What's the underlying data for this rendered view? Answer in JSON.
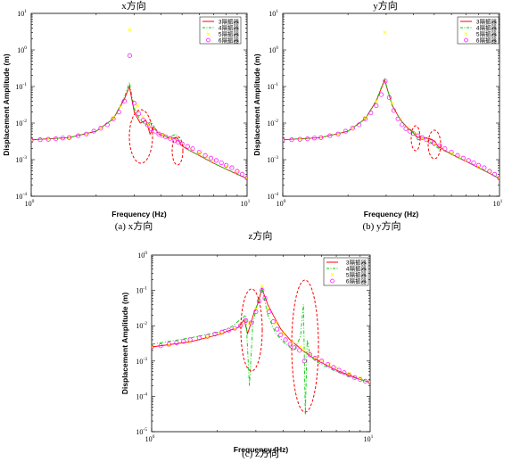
{
  "chart_data": [
    {
      "type": "line",
      "title": "x方向",
      "caption": "(a) x方向",
      "xlabel": "Frequency (Hz)",
      "ylabel": "Displacement Amplitude (m)",
      "xscale": "log",
      "yscale": "log",
      "xlim": [
        1,
        10
      ],
      "ylim": [
        0.0001,
        10
      ],
      "xticks": [
        {
          "label": "10",
          "exp": "0"
        },
        {
          "label": "10",
          "exp": "1"
        }
      ],
      "yticks": [
        {
          "label": "10",
          "exp": "-4"
        },
        {
          "label": "10",
          "exp": "-3"
        },
        {
          "label": "10",
          "exp": "-2"
        },
        {
          "label": "10",
          "exp": "-1"
        },
        {
          "label": "10",
          "exp": "0"
        },
        {
          "label": "10",
          "exp": "1"
        }
      ],
      "legend": {
        "position": "top-right",
        "entries": [
          "3隔振器",
          "4隔振器",
          "5隔振器",
          "6隔振器"
        ]
      },
      "series": [
        {
          "name": "3隔振器",
          "color": "#ff0000",
          "style": "solid",
          "marker": "none",
          "x": [
            1,
            1.5,
            2,
            2.4,
            2.7,
            2.85,
            3.0,
            3.2,
            3.4,
            3.55,
            3.7,
            3.9,
            4.1,
            4.4,
            4.7,
            4.9,
            5.1,
            5.5,
            6,
            7,
            8,
            9,
            10
          ],
          "y": [
            0.0035,
            0.004,
            0.006,
            0.013,
            0.045,
            0.1,
            0.02,
            0.01,
            0.012,
            0.005,
            0.008,
            0.005,
            0.0045,
            0.0038,
            0.004,
            0.0028,
            0.0022,
            0.0017,
            0.0013,
            0.0008,
            0.00055,
            0.0004,
            0.0003
          ]
        },
        {
          "name": "4隔振器",
          "color": "#00cc00",
          "style": "dashdot",
          "marker": "none",
          "x": [
            1,
            1.5,
            2,
            2.4,
            2.7,
            2.85,
            3.0,
            3.2,
            3.4,
            3.6,
            3.8,
            4.0,
            4.3,
            4.7,
            4.9,
            5.1,
            5.5,
            6,
            7,
            8,
            9,
            10
          ],
          "y": [
            0.0035,
            0.004,
            0.006,
            0.013,
            0.05,
            0.13,
            0.025,
            0.012,
            0.009,
            0.011,
            0.006,
            0.0048,
            0.004,
            0.005,
            0.0027,
            0.0022,
            0.0017,
            0.0013,
            0.0008,
            0.00055,
            0.0004,
            0.0003
          ]
        },
        {
          "name": "5隔振器",
          "color": "#ffff00",
          "style": "none",
          "marker": "x",
          "x": [
            1,
            1.2,
            1.5,
            1.8,
            2.1,
            2.4,
            2.6,
            2.86,
            3.1,
            3.3,
            3.5,
            3.7,
            3.9,
            4.1,
            4.4,
            4.7,
            5.0,
            5.5,
            6,
            6.5,
            7,
            8,
            9,
            10
          ],
          "y": [
            0.0035,
            0.0036,
            0.004,
            0.005,
            0.0075,
            0.014,
            0.028,
            3.5,
            0.03,
            0.015,
            0.009,
            0.007,
            0.0055,
            0.0047,
            0.004,
            0.0033,
            0.0027,
            0.002,
            0.0015,
            0.0012,
            0.00095,
            0.00065,
            0.00045,
            0.00032
          ]
        },
        {
          "name": "6隔振器",
          "color": "#ff00ff",
          "style": "none",
          "marker": "circle",
          "x": [
            1,
            1.1,
            1.2,
            1.3,
            1.4,
            1.5,
            1.65,
            1.8,
            1.95,
            2.1,
            2.25,
            2.4,
            2.55,
            2.7,
            2.86,
            3.0,
            3.15,
            3.3,
            3.45,
            3.6,
            3.75,
            3.9,
            4.05,
            4.2,
            4.4,
            4.6,
            4.8,
            5.0,
            5.3,
            5.6,
            6,
            6.4,
            6.8,
            7.2,
            7.6,
            8,
            8.5,
            9,
            9.5,
            10
          ],
          "y": [
            0.0034,
            0.0035,
            0.0036,
            0.0037,
            0.0039,
            0.004,
            0.0045,
            0.005,
            0.006,
            0.0072,
            0.009,
            0.013,
            0.02,
            0.04,
            0.7,
            0.035,
            0.018,
            0.012,
            0.009,
            0.007,
            0.006,
            0.005,
            0.0046,
            0.0042,
            0.0038,
            0.0033,
            0.003,
            0.0027,
            0.0023,
            0.002,
            0.0016,
            0.0013,
            0.0011,
            0.00095,
            0.00082,
            0.0007,
            0.0006,
            0.00048,
            0.0004,
            0.00031
          ]
        }
      ]
    },
    {
      "type": "line",
      "title": "y方向",
      "caption": "(b) y方向",
      "xlabel": "Frequency (Hz)",
      "ylabel": "Displacement Amplitude (m)",
      "xscale": "log",
      "yscale": "log",
      "xlim": [
        1,
        10
      ],
      "ylim": [
        0.0001,
        10
      ],
      "xticks": [
        {
          "label": "10",
          "exp": "0"
        },
        {
          "label": "10",
          "exp": "1"
        }
      ],
      "yticks": [
        {
          "label": "10",
          "exp": "-4"
        },
        {
          "label": "10",
          "exp": "-3"
        },
        {
          "label": "10",
          "exp": "-2"
        },
        {
          "label": "10",
          "exp": "-1"
        },
        {
          "label": "10",
          "exp": "0"
        },
        {
          "label": "10",
          "exp": "1"
        }
      ],
      "legend": {
        "position": "top-right",
        "entries": [
          "3隔振器",
          "4隔振器",
          "5隔振器",
          "6隔振器"
        ]
      },
      "series": [
        {
          "name": "3隔振器",
          "color": "#ff0000",
          "style": "solid",
          "marker": "none",
          "x": [
            1,
            1.5,
            2,
            2.4,
            2.7,
            2.95,
            3.2,
            3.5,
            3.8,
            4.0,
            4.15,
            4.4,
            4.8,
            5.0,
            5.2,
            5.5,
            6,
            7,
            8,
            9,
            10
          ],
          "y": [
            0.0035,
            0.004,
            0.006,
            0.013,
            0.04,
            0.15,
            0.03,
            0.012,
            0.007,
            0.0055,
            0.0042,
            0.004,
            0.0037,
            0.0033,
            0.0023,
            0.0019,
            0.0014,
            0.0009,
            0.0006,
            0.00042,
            0.0003
          ]
        },
        {
          "name": "4隔振器",
          "color": "#00cc00",
          "style": "dashdot",
          "marker": "none",
          "x": [
            1,
            1.5,
            2,
            2.4,
            2.7,
            2.95,
            3.2,
            3.5,
            3.8,
            4.05,
            4.2,
            4.6,
            4.95,
            5.2,
            5.5,
            6,
            7,
            8,
            9,
            10
          ],
          "y": [
            0.0035,
            0.004,
            0.006,
            0.013,
            0.042,
            0.16,
            0.03,
            0.012,
            0.007,
            0.005,
            0.0035,
            0.004,
            0.0025,
            0.0021,
            0.0018,
            0.0014,
            0.0009,
            0.0006,
            0.00042,
            0.0003
          ]
        },
        {
          "name": "5隔振器",
          "color": "#ffff00",
          "style": "none",
          "marker": "x",
          "x": [
            1,
            1.2,
            1.5,
            1.8,
            2.1,
            2.4,
            2.7,
            2.96,
            3.2,
            3.5,
            3.8,
            4.1,
            4.4,
            4.7,
            5.0,
            5.5,
            6,
            6.5,
            7,
            8,
            9,
            10
          ],
          "y": [
            0.0035,
            0.0036,
            0.004,
            0.005,
            0.0075,
            0.014,
            0.04,
            3.0,
            0.035,
            0.013,
            0.0075,
            0.005,
            0.0038,
            0.0031,
            0.0026,
            0.002,
            0.0015,
            0.0012,
            0.00095,
            0.00065,
            0.00045,
            0.00032
          ]
        },
        {
          "name": "6隔振器",
          "color": "#ff00ff",
          "style": "none",
          "marker": "circle",
          "x": [
            1,
            1.1,
            1.2,
            1.3,
            1.4,
            1.5,
            1.65,
            1.8,
            1.95,
            2.1,
            2.25,
            2.4,
            2.55,
            2.7,
            2.85,
            2.97,
            3.1,
            3.25,
            3.4,
            3.55,
            3.7,
            3.85,
            4.0,
            4.2,
            4.4,
            4.6,
            4.8,
            5.0,
            5.3,
            5.6,
            6,
            6.4,
            6.8,
            7.2,
            7.6,
            8,
            8.5,
            9,
            9.5,
            10
          ],
          "y": [
            0.0034,
            0.0035,
            0.0036,
            0.0037,
            0.0039,
            0.004,
            0.0045,
            0.005,
            0.006,
            0.0072,
            0.009,
            0.013,
            0.019,
            0.03,
            0.06,
            0.14,
            0.05,
            0.022,
            0.013,
            0.009,
            0.007,
            0.006,
            0.0052,
            0.0045,
            0.004,
            0.0035,
            0.0031,
            0.0028,
            0.0024,
            0.002,
            0.0016,
            0.0013,
            0.0011,
            0.00095,
            0.00082,
            0.0007,
            0.0006,
            0.00048,
            0.0004,
            0.00031
          ]
        }
      ]
    },
    {
      "type": "line",
      "title": "z方向",
      "caption": "(c) z方向",
      "xlabel": "Frequency (Hz)",
      "ylabel": "Displacement Amplitude (m)",
      "xscale": "log",
      "yscale": "log",
      "xlim": [
        1,
        10
      ],
      "ylim": [
        1e-05,
        1
      ],
      "xticks": [
        {
          "label": "10",
          "exp": "0"
        },
        {
          "label": "10",
          "exp": "1"
        }
      ],
      "yticks": [
        {
          "label": "10",
          "exp": "-5"
        },
        {
          "label": "10",
          "exp": "-4"
        },
        {
          "label": "10",
          "exp": "-3"
        },
        {
          "label": "10",
          "exp": "-2"
        },
        {
          "label": "10",
          "exp": "-1"
        },
        {
          "label": "10",
          "exp": "0"
        }
      ],
      "legend": {
        "position": "top-right",
        "entries": [
          "3隔振器",
          "4隔振器",
          "5隔振器",
          "6隔振器"
        ]
      },
      "series": [
        {
          "name": "3隔振器",
          "color": "#ff0000",
          "style": "solid",
          "marker": "none",
          "x": [
            1,
            1.5,
            2,
            2.3,
            2.5,
            2.65,
            2.75,
            2.85,
            2.95,
            3.05,
            3.2,
            3.4,
            3.6,
            3.9,
            4.3,
            4.7,
            4.9,
            5.1,
            5.4,
            6,
            7,
            8,
            9,
            10
          ],
          "y": [
            0.0025,
            0.0035,
            0.0055,
            0.0075,
            0.009,
            0.015,
            0.006,
            0.012,
            0.025,
            0.04,
            0.11,
            0.04,
            0.02,
            0.008,
            0.004,
            0.0025,
            0.002,
            0.0017,
            0.0013,
            0.0009,
            0.00055,
            0.0004,
            0.0003,
            0.00025
          ]
        },
        {
          "name": "4隔振器",
          "color": "#00cc00",
          "style": "dashdot",
          "marker": "none",
          "x": [
            1,
            1.5,
            2,
            2.3,
            2.55,
            2.7,
            2.8,
            2.9,
            3.0,
            3.2,
            3.4,
            3.7,
            4.1,
            4.5,
            4.8,
            4.95,
            5.05,
            5.15,
            5.3,
            5.6,
            6,
            7,
            8,
            9,
            10
          ],
          "y": [
            0.003,
            0.0045,
            0.0065,
            0.009,
            0.015,
            0.02,
            0.0002,
            0.01,
            0.03,
            0.12,
            0.02,
            0.006,
            0.003,
            0.002,
            0.005,
            0.04,
            3e-05,
            0.004,
            0.0015,
            0.001,
            0.0008,
            0.0005,
            0.00037,
            0.0003,
            0.00025
          ]
        },
        {
          "name": "5隔振器",
          "color": "#ffff00",
          "style": "none",
          "marker": "x",
          "x": [
            1,
            1.2,
            1.5,
            1.8,
            2.1,
            2.4,
            2.6,
            2.8,
            3.0,
            3.2,
            3.4,
            3.7,
            4.0,
            4.4,
            4.8,
            5.0,
            5.3,
            5.6,
            6,
            6.5,
            7,
            8,
            9,
            10
          ],
          "y": [
            0.0025,
            0.0028,
            0.0035,
            0.0045,
            0.006,
            0.008,
            0.011,
            0.012,
            0.03,
            0.13,
            0.03,
            0.012,
            0.006,
            0.0035,
            0.0025,
            0.0021,
            0.0017,
            0.0013,
            0.001,
            0.0008,
            0.00065,
            0.00045,
            0.00033,
            0.00026
          ]
        },
        {
          "name": "6隔振器",
          "color": "#ff00ff",
          "style": "none",
          "marker": "circle",
          "x": [
            1,
            1.1,
            1.2,
            1.3,
            1.4,
            1.5,
            1.65,
            1.8,
            1.95,
            2.1,
            2.25,
            2.4,
            2.55,
            2.7,
            2.85,
            3.0,
            3.1,
            3.2,
            3.3,
            3.45,
            3.6,
            3.75,
            3.9,
            4.1,
            4.3,
            4.5,
            4.75,
            5.0,
            5.3,
            5.6,
            6,
            6.4,
            6.8,
            7.2,
            7.6,
            8,
            8.5,
            9,
            9.5,
            10
          ],
          "y": [
            0.0025,
            0.0027,
            0.003,
            0.0033,
            0.0036,
            0.004,
            0.0045,
            0.005,
            0.0058,
            0.0066,
            0.0075,
            0.0085,
            0.01,
            0.014,
            0.012,
            0.025,
            0.05,
            0.1,
            0.06,
            0.025,
            0.013,
            0.008,
            0.0055,
            0.004,
            0.003,
            0.0024,
            0.002,
            0.001,
            0.0015,
            0.0012,
            0.001,
            0.0008,
            0.00066,
            0.00055,
            0.00047,
            0.0004,
            0.00034,
            0.0003,
            0.00027,
            0.00025
          ]
        }
      ]
    }
  ]
}
